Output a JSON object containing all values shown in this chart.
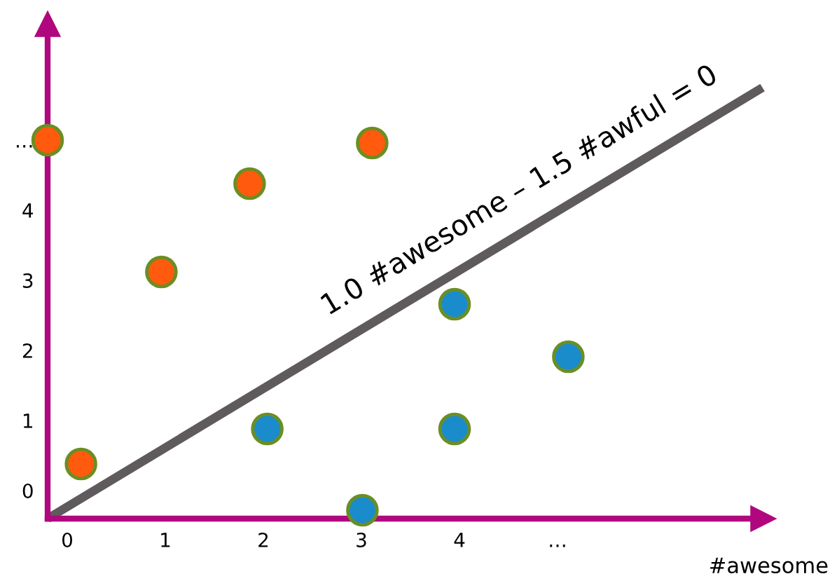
{
  "chart_data": {
    "type": "scatter",
    "xlabel": "#awesome",
    "xlim": [
      -0.2,
      7.1
    ],
    "ylim": [
      -0.4,
      6.66
    ],
    "xticks": [
      0,
      1,
      2,
      3,
      4,
      {
        "value": 5,
        "label": "…"
      }
    ],
    "yticks": [
      0,
      1,
      2,
      3,
      4,
      {
        "value": 5,
        "label": "…"
      }
    ],
    "grid": false,
    "marker": "circle",
    "series": [
      {
        "color": "#ff5a0e",
        "x": [
          -0.2,
          0.14,
          0.96,
          1.86,
          3.11
        ],
        "values": [
          5.0,
          0.38,
          3.12,
          4.38,
          4.96
        ]
      },
      {
        "color": "#1a8ccc",
        "x": [
          3.95,
          5.11,
          2.04,
          3.95,
          3.01
        ],
        "values": [
          2.66,
          1.91,
          0.88,
          0.88,
          -0.28
        ]
      },
      {
        "type": "line",
        "marker": "none",
        "color": "#5f5a5c",
        "x": [
          -0.2,
          7.09
        ],
        "values": [
          -0.4,
          5.75
        ]
      }
    ],
    "annotations": [
      "1.0 #awesome – 1.5 #awful = 0"
    ]
  }
}
